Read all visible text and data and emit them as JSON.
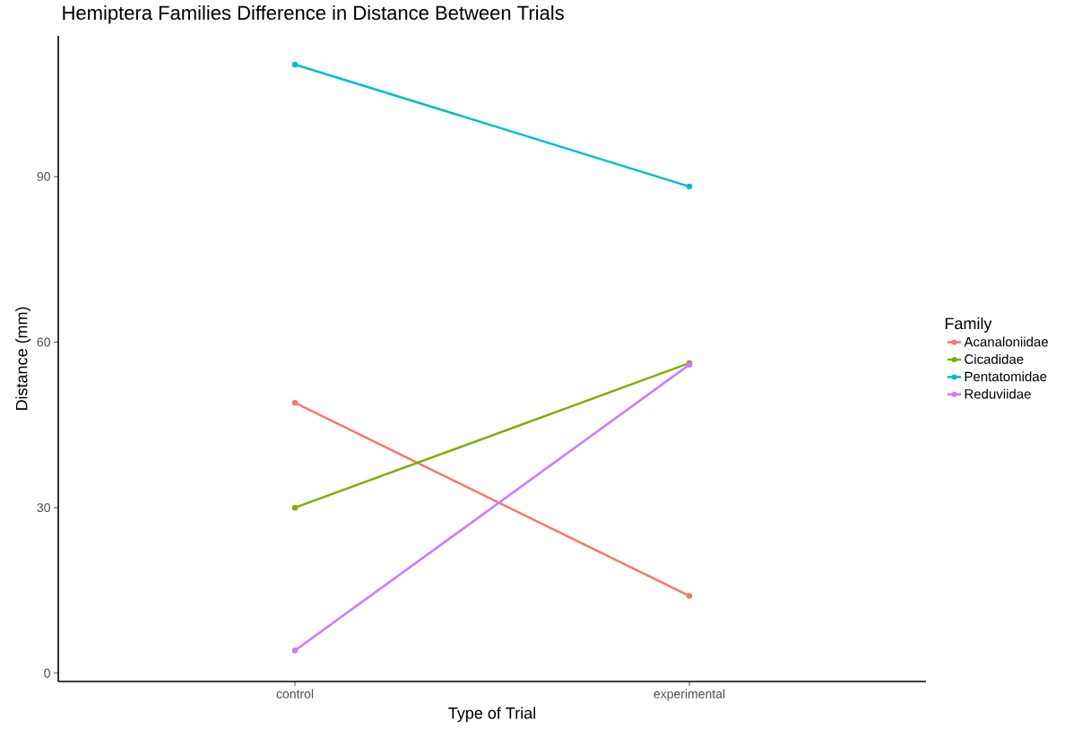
{
  "chart_data": {
    "type": "line",
    "title": "Hemiptera Families Difference in Distance Between Trials",
    "xlabel": "Type of Trial",
    "ylabel": "Distance (mm)",
    "legend_title": "Family",
    "categories": [
      "control",
      "experimental"
    ],
    "series": [
      {
        "name": "Acanaloniidae",
        "color": "#f8766d",
        "values": [
          49.0,
          14.0
        ]
      },
      {
        "name": "Cicadidae",
        "color": "#7cae00",
        "values": [
          30.0,
          56.2
        ]
      },
      {
        "name": "Pentatomidae",
        "color": "#00bfc4",
        "values": [
          110.3,
          88.2
        ]
      },
      {
        "name": "Reduviidae",
        "color": "#c77cff",
        "values": [
          4.1,
          55.9
        ]
      }
    ],
    "ylim": [
      -1.5,
      115.5
    ],
    "yticks": [
      0,
      30,
      60,
      90
    ],
    "grid": false,
    "legend": "right",
    "marker": "circle",
    "line_style": "solid"
  }
}
